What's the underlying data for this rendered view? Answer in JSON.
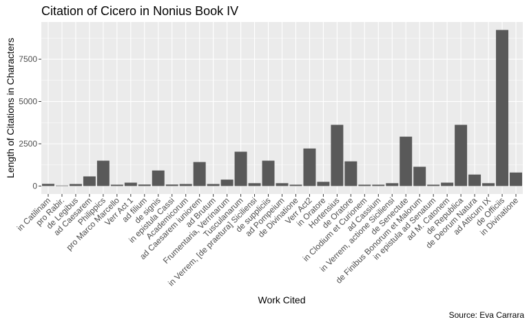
{
  "chart_data": {
    "type": "bar",
    "title": "Citation of Cicero in Nonius Book IV",
    "xlabel": "Work Cited",
    "ylabel": "Length of Citations in Characters",
    "caption": "Source: Eva Carrara",
    "ylim": [
      -470,
      9700
    ],
    "yticks": [
      0,
      2500,
      5000,
      7500
    ],
    "ytick_labels": [
      "0",
      "2500",
      "5000",
      "7500"
    ],
    "grid": true,
    "legend": "none",
    "bar_color": "#595959",
    "panel_color": "#ebebeb",
    "categories": [
      "in Catilinam",
      "pro Rabir.",
      "de Legibus",
      "ad Caesarem",
      "Philippics",
      "pro Marco Marcello",
      "Verr Act 1",
      "ad filium",
      "de signis",
      "in epistula Cassi",
      "Academicorum",
      "ad Caesarem iuniorem",
      "ad Brutum",
      "Frumentaria, Verrinarum",
      "Tusculanarum",
      "in Verrem, [de praetura] Siciliensi",
      "de suppliciis",
      "ad Pompeium",
      "de Divinatione",
      "Verr Act2",
      "in Oratore",
      "Hortensius",
      "de Oratore",
      "in Clodium et Curionem",
      "ad Cassium",
      "in Verrem, actione Siciliensi",
      "de Senectute",
      "de Finibus Bonorum et Malorum",
      "in epistula ad Senatum",
      "ad M. Catonem",
      "de Republica",
      "de Deorum Natura",
      "ad Atticum IX",
      "de Officiis",
      "in Divinatione"
    ],
    "values": [
      130,
      30,
      120,
      570,
      1500,
      80,
      200,
      90,
      920,
      90,
      120,
      1420,
      120,
      380,
      2030,
      170,
      1500,
      170,
      80,
      2220,
      250,
      3620,
      1460,
      80,
      80,
      170,
      2920,
      1140,
      80,
      200,
      3620,
      680,
      170,
      9230,
      800
    ]
  }
}
